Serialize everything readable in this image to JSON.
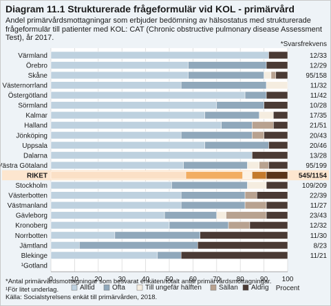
{
  "title": "Diagram 11.1 Strukturerade frågeformulär vid KOL - primärvård",
  "subtitle": "Andel primärvårdsmottagningar som erbjuder bedömning av hälsostatus med strukturerade frågeformulär till patienter med KOL: CAT (Chronic obstructive pulmonary disease Assessment Test), år 2017.",
  "footnotes": [
    "*Antal primärvårdsmottagningar som besvarat enkäten/totalt antal primärvårdsmottagningar.",
    "¹För litet underlag.",
    "Källa: Socialstyrelsens enkät till primärvården, 2018."
  ],
  "colors": {
    "Alltid": "#bed1df",
    "Ofta": "#90a8bb",
    "Till ungefär hälften": "#f5ede0",
    "Sällan": "#b8a290",
    "Aldrig": "#4a3a34",
    "riket_Alltid": "#fbe0c6",
    "riket_Ofta": "#f2ad62",
    "riket_Till ungefär hälften": "#fdf2e4",
    "riket_Sällan": "#c47a2c",
    "riket_Aldrig": "#5a3417"
  },
  "chart_data": {
    "type": "bar",
    "orientation": "horizontal",
    "stacked": true,
    "categories": [
      "Värmland",
      "Örebro",
      "Skåne",
      "Västernorrland",
      "Östergötland",
      "Sörmland",
      "Kalmar",
      "Halland",
      "Jönköping",
      "Uppsala",
      "Dalarna",
      "Västra Götaland",
      "RIKET",
      "Stockholm",
      "Västerbotten",
      "Västmanland",
      "Gävleborg",
      "Kronoberg",
      "Norrbotten",
      "Jämtland",
      "Blekinge",
      "¹Gotland"
    ],
    "response_label": "*Svarsfrekvens",
    "response": [
      "12/33",
      "12/29",
      "95/158",
      "11/32",
      "11/42",
      "10/28",
      "17/35",
      "21/51",
      "20/43",
      "20/46",
      "13/28",
      "95/199",
      "545/1154",
      "109/209",
      "22/39",
      "11/27",
      "23/43",
      "12/32",
      "11/30",
      "8/23",
      "11/21",
      ""
    ],
    "series": [
      {
        "name": "Alltid",
        "values": [
          92,
          58,
          58,
          55,
          82,
          70,
          65,
          72,
          55,
          65,
          85,
          56,
          57,
          51,
          55,
          55,
          48,
          50,
          27,
          12,
          45,
          null
        ]
      },
      {
        "name": "Ofta",
        "values": [
          0,
          33,
          32,
          36,
          9,
          20,
          23,
          13,
          30,
          27,
          0,
          27,
          24,
          32,
          27,
          27,
          22,
          25,
          36,
          50,
          10,
          null
        ]
      },
      {
        "name": "Till ungefär hälften",
        "values": [
          0,
          0,
          3,
          9,
          0,
          0,
          6,
          0,
          0,
          0,
          0,
          5,
          4,
          8,
          0,
          0,
          4,
          0,
          0,
          0,
          0,
          null
        ]
      },
      {
        "name": "Sällan",
        "values": [
          0,
          0,
          2,
          0,
          0,
          0,
          0,
          9,
          5,
          0,
          0,
          4,
          6,
          0,
          5,
          9,
          17,
          9,
          0,
          0,
          0,
          null
        ]
      },
      {
        "name": "Aldrig",
        "values": [
          8,
          9,
          5,
          0,
          9,
          10,
          6,
          6,
          10,
          8,
          15,
          8,
          9,
          9,
          13,
          9,
          9,
          16,
          37,
          38,
          45,
          null
        ]
      }
    ],
    "xlim": [
      0,
      100
    ],
    "xticks": [
      0,
      10,
      20,
      30,
      40,
      50,
      60,
      70,
      80,
      90,
      100
    ],
    "xlabel": "Procent",
    "legend_position": "bottom"
  }
}
